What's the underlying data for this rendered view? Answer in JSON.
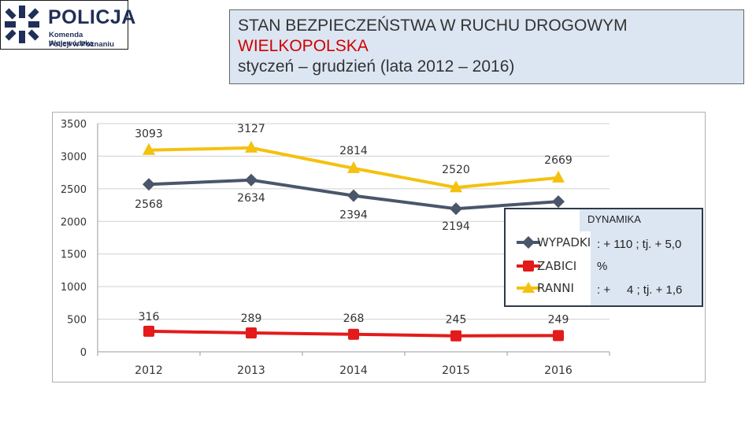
{
  "logo": {
    "title": "POLICJA",
    "line1": "Komenda Wojewódzka",
    "line2": "Policji w Poznaniu"
  },
  "header": {
    "line1": "STAN BEZPIECZEŃSTWA W RUCHU DROGOWYM",
    "line2": "WIELKOPOLSKA",
    "line3": "styczeń – grudzień (lata 2012 – 2016)"
  },
  "legend": {
    "title": "DYNAMIKA",
    "items": [
      {
        "label": "WYPADKI",
        "value": ": + 110 ; tj. + 5,0"
      },
      {
        "label": "ZABICI",
        "value": "%"
      },
      {
        "label": "RANNI",
        "value": ": +     4 ; tj. + 1,6"
      }
    ]
  },
  "chart_data": {
    "type": "line",
    "categories": [
      "2012",
      "2013",
      "2014",
      "2015",
      "2016"
    ],
    "ylim": [
      0,
      3500
    ],
    "yticks": [
      0,
      500,
      1000,
      1500,
      2000,
      2500,
      3000,
      3500
    ],
    "grid": true,
    "legend_position": "right",
    "series": [
      {
        "name": "WYPADKI",
        "values": [
          2568,
          2634,
          2394,
          2194,
          2304
        ],
        "color": "#4a5669",
        "marker": "diamond"
      },
      {
        "name": "ZABICI",
        "values": [
          316,
          289,
          268,
          245,
          249
        ],
        "color": "#e31b1b",
        "marker": "square"
      },
      {
        "name": "RANNI",
        "values": [
          3093,
          3127,
          2814,
          2520,
          2669
        ],
        "color": "#f5c10f",
        "marker": "triangle"
      }
    ]
  }
}
